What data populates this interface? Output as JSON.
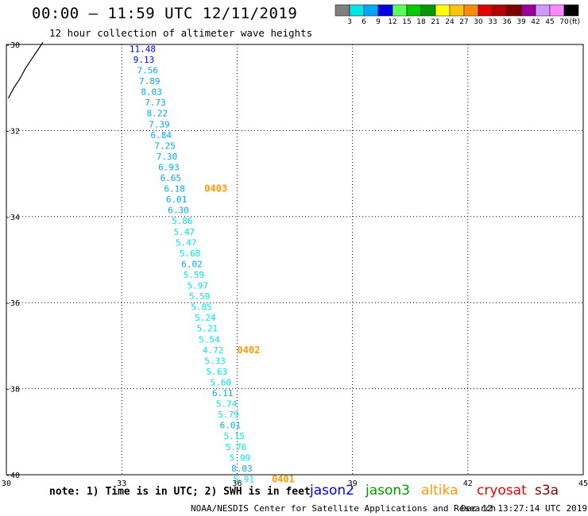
{
  "title": "00:00 – 11:59 UTC 12/11/2019",
  "subtitle": "12 hour collection of altimeter wave heights",
  "legend": {
    "colors": [
      "#7f7f7f",
      "#00e5e5",
      "#00a6ff",
      "#0000e6",
      "#5aff5a",
      "#00cc00",
      "#009900",
      "#ffff00",
      "#ffc400",
      "#ff8c00",
      "#e60000",
      "#b40000",
      "#800000",
      "#9b009b",
      "#cc99ff",
      "#ff88ff",
      "#000000"
    ],
    "labels": [
      "3",
      "6",
      "9",
      "12",
      "15",
      "18",
      "21",
      "24",
      "27",
      "30",
      "33",
      "36",
      "39",
      "42",
      "45",
      "70"
    ],
    "unit": "(ft)"
  },
  "note": "note:  1) Time is in UTC;  2) SWH is in feet",
  "satellites": [
    {
      "name": "jason2",
      "color": "#0000e6"
    },
    {
      "name": "jason3",
      "color": "#009900"
    },
    {
      "name": "altika",
      "color": "#ff9900"
    },
    {
      "name": "cryosat",
      "color": "#e60000"
    },
    {
      "name": "s3a",
      "color": "#800000"
    }
  ],
  "credit": "NOAA/NESDIS Center for Satellite Applications and Research",
  "timestamp": "Dec 12 13:27:14 UTC 2019",
  "chart_data": {
    "type": "scatter",
    "xlim": [
      30,
      45
    ],
    "ylim": [
      -40,
      -30
    ],
    "x_ticks": [
      "30",
      "33",
      "36",
      "39",
      "42",
      "45"
    ],
    "y_ticks": [
      "-30",
      "-32",
      "-34",
      "-36",
      "-38",
      "-40"
    ],
    "grid": true,
    "series": [
      {
        "values": [
          {
            "x": 33.2,
            "y": -30.1,
            "label": "11.48",
            "color": "#0000e6"
          },
          {
            "x": 33.3,
            "y": -30.35,
            "label": "9.13",
            "color": "#0000e6"
          },
          {
            "x": 33.4,
            "y": -30.6,
            "label": "7.56",
            "color": "#00a6ff"
          },
          {
            "x": 33.45,
            "y": -30.85,
            "label": "7.89",
            "color": "#00a6ff"
          },
          {
            "x": 33.5,
            "y": -31.1,
            "label": "8.03",
            "color": "#00a6ff"
          },
          {
            "x": 33.6,
            "y": -31.35,
            "label": "7.73",
            "color": "#00a6ff"
          },
          {
            "x": 33.65,
            "y": -31.6,
            "label": "8.22",
            "color": "#00a6ff"
          },
          {
            "x": 33.7,
            "y": -31.85,
            "label": "7.39",
            "color": "#00a6ff"
          },
          {
            "x": 33.75,
            "y": -32.1,
            "label": "6.84",
            "color": "#00a6ff"
          },
          {
            "x": 33.85,
            "y": -32.35,
            "label": "7.25",
            "color": "#00a6ff"
          },
          {
            "x": 33.9,
            "y": -32.6,
            "label": "7.30",
            "color": "#00a6ff"
          },
          {
            "x": 33.95,
            "y": -32.85,
            "label": "6.93",
            "color": "#00a6ff"
          },
          {
            "x": 34.0,
            "y": -33.1,
            "label": "6.65",
            "color": "#00a6ff"
          },
          {
            "x": 34.1,
            "y": -33.35,
            "label": "6.18",
            "color": "#00a6ff"
          },
          {
            "x": 34.15,
            "y": -33.6,
            "label": "6.01",
            "color": "#00a6ff"
          },
          {
            "x": 34.2,
            "y": -33.85,
            "label": "6.30",
            "color": "#00a6ff"
          },
          {
            "x": 34.3,
            "y": -34.1,
            "label": "5.86",
            "color": "#00e5e5"
          },
          {
            "x": 34.35,
            "y": -34.35,
            "label": "5.47",
            "color": "#00e5e5"
          },
          {
            "x": 34.4,
            "y": -34.6,
            "label": "5.47",
            "color": "#00e5e5"
          },
          {
            "x": 34.5,
            "y": -34.85,
            "label": "5.68",
            "color": "#00e5e5"
          },
          {
            "x": 34.55,
            "y": -35.1,
            "label": "6.02",
            "color": "#00a6ff"
          },
          {
            "x": 34.6,
            "y": -35.35,
            "label": "5.59",
            "color": "#00e5e5"
          },
          {
            "x": 34.7,
            "y": -35.6,
            "label": "5.97",
            "color": "#00e5e5"
          },
          {
            "x": 34.75,
            "y": -35.85,
            "label": "5.59",
            "color": "#00e5e5"
          },
          {
            "x": 34.8,
            "y": -36.1,
            "label": "5.85",
            "color": "#00e5e5"
          },
          {
            "x": 34.9,
            "y": -36.35,
            "label": "5.24",
            "color": "#00e5e5"
          },
          {
            "x": 34.95,
            "y": -36.6,
            "label": "5.21",
            "color": "#00e5e5"
          },
          {
            "x": 35.0,
            "y": -36.85,
            "label": "5.54",
            "color": "#00e5e5"
          },
          {
            "x": 35.1,
            "y": -37.1,
            "label": "4.72",
            "color": "#00e5e5"
          },
          {
            "x": 35.15,
            "y": -37.35,
            "label": "5.33",
            "color": "#00e5e5"
          },
          {
            "x": 35.2,
            "y": -37.6,
            "label": "5.63",
            "color": "#00e5e5"
          },
          {
            "x": 35.3,
            "y": -37.85,
            "label": "5.60",
            "color": "#00e5e5"
          },
          {
            "x": 35.35,
            "y": -38.1,
            "label": "6.11",
            "color": "#00a6ff"
          },
          {
            "x": 35.45,
            "y": -38.35,
            "label": "5.74",
            "color": "#00e5e5"
          },
          {
            "x": 35.5,
            "y": -38.6,
            "label": "5.79",
            "color": "#00e5e5"
          },
          {
            "x": 35.55,
            "y": -38.85,
            "label": "6.01",
            "color": "#00a6ff"
          },
          {
            "x": 35.65,
            "y": -39.1,
            "label": "5.15",
            "color": "#00e5e5"
          },
          {
            "x": 35.7,
            "y": -39.35,
            "label": "5.76",
            "color": "#00e5e5"
          },
          {
            "x": 35.8,
            "y": -39.6,
            "label": "5.99",
            "color": "#00e5e5"
          },
          {
            "x": 35.85,
            "y": -39.85,
            "label": "8.03",
            "color": "#00a6ff"
          },
          {
            "x": 35.9,
            "y": -40.1,
            "label": "5.91",
            "color": "#00e5e5"
          }
        ]
      }
    ],
    "annotations": [
      {
        "x": 35.15,
        "y": -33.35,
        "text": "0403",
        "color": "#ff9900"
      },
      {
        "x": 36.0,
        "y": -37.1,
        "text": "0402",
        "color": "#ff9900"
      },
      {
        "x": 36.9,
        "y": -40.1,
        "text": "0401",
        "color": "#ff9900"
      }
    ],
    "coastline": [
      [
        30.05,
        -31.25
      ],
      [
        30.2,
        -31.0
      ],
      [
        30.35,
        -30.8
      ],
      [
        30.5,
        -30.55
      ],
      [
        30.65,
        -30.35
      ],
      [
        30.8,
        -30.15
      ],
      [
        30.95,
        -29.95
      ]
    ]
  }
}
